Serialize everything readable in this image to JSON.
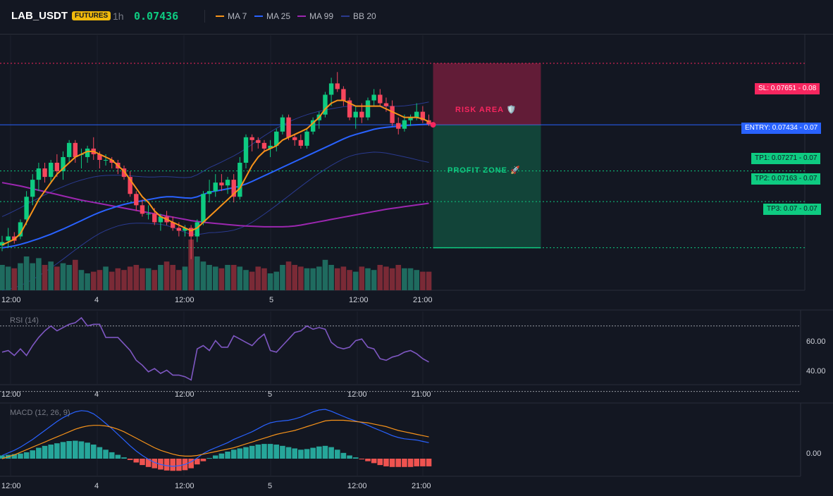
{
  "header": {
    "symbol": "LAB_USDT",
    "badge": "FUTURES",
    "timeframe": "1h",
    "last_price": "0.07436",
    "legend": [
      {
        "label": "MA 7",
        "color": "#f7931a"
      },
      {
        "label": "MA 25",
        "color": "#2962ff"
      },
      {
        "label": "MA 99",
        "color": "#9c27b0"
      },
      {
        "label": "BB 20",
        "color": "#2a3a8f"
      }
    ]
  },
  "levels": {
    "sl": {
      "label": "SL: 0.07651",
      "tag": "0.08",
      "price": 0.07651
    },
    "entry": {
      "label": "ENTRY: 0.07434",
      "tag": "0.07",
      "price": 0.07434
    },
    "tp1": {
      "label": "TP1: 0.07271",
      "tag": "0.07",
      "price": 0.07271
    },
    "tp2": {
      "label": "TP2: 0.07163",
      "tag": "0.07",
      "price": 0.07163
    },
    "tp3": {
      "label": "TP3: 0.07",
      "tag": "0.07",
      "price": 0.07
    }
  },
  "zones": {
    "risk": "RISK AREA 🛡️",
    "profit": "PROFIT ZONE 🚀"
  },
  "time_axis": [
    "12:00",
    "4",
    "12:00",
    "5",
    "12:00",
    "21:00"
  ],
  "rsi": {
    "title": "RSI (14)",
    "ticks": [
      "60.00",
      "40.00"
    ]
  },
  "macd": {
    "title": "MACD (12, 26, 9)",
    "ticks": [
      "0.00"
    ]
  },
  "colors": {
    "up": "#0ecb81",
    "down": "#f6465d",
    "ma7": "#f7931a",
    "ma25": "#2962ff",
    "ma99": "#9c27b0",
    "bb": "#2a3a8f",
    "rsi": "#7e57c2",
    "macd": "#2962ff",
    "signal": "#f7931a"
  },
  "chart_data": [
    {
      "type": "candlestick",
      "title": "LAB_USDT 1h",
      "ylim": [
        0.0685,
        0.0775
      ],
      "candles": [
        [
          0.07008,
          0.07042,
          0.06988,
          0.0702
        ],
        [
          0.07025,
          0.0707,
          0.07,
          0.0704
        ],
        [
          0.0704,
          0.07055,
          0.07015,
          0.07025
        ],
        [
          0.0704,
          0.071,
          0.0703,
          0.0709
        ],
        [
          0.071,
          0.072,
          0.0708,
          0.0718
        ],
        [
          0.0718,
          0.0726,
          0.0715,
          0.0724
        ],
        [
          0.0724,
          0.073,
          0.072,
          0.0728
        ],
        [
          0.0728,
          0.073,
          0.0723,
          0.0725
        ],
        [
          0.0725,
          0.0731,
          0.0723,
          0.073
        ],
        [
          0.073,
          0.0733,
          0.0725,
          0.0727
        ],
        [
          0.0727,
          0.0734,
          0.0724,
          0.0732
        ],
        [
          0.0732,
          0.0738,
          0.073,
          0.0737
        ],
        [
          0.0737,
          0.0738,
          0.073,
          0.0732
        ],
        [
          0.0733,
          0.0735,
          0.0728,
          0.0733
        ],
        [
          0.0732,
          0.0736,
          0.073,
          0.0735
        ],
        [
          0.0735,
          0.0739,
          0.0731,
          0.0733
        ],
        [
          0.0733,
          0.0734,
          0.0728,
          0.0731
        ],
        [
          0.0731,
          0.0733,
          0.0729,
          0.0731
        ],
        [
          0.0731,
          0.0732,
          0.0728,
          0.073
        ],
        [
          0.073,
          0.0731,
          0.0726,
          0.0728
        ],
        [
          0.0728,
          0.0729,
          0.0724,
          0.0725
        ],
        [
          0.0725,
          0.0727,
          0.0718,
          0.0719
        ],
        [
          0.0719,
          0.072,
          0.0713,
          0.0715
        ],
        [
          0.0715,
          0.0717,
          0.0711,
          0.0712
        ],
        [
          0.0712,
          0.0715,
          0.071,
          0.0712
        ],
        [
          0.0712,
          0.0714,
          0.0708,
          0.0709
        ],
        [
          0.0709,
          0.0712,
          0.0706,
          0.0711
        ],
        [
          0.0711,
          0.0713,
          0.0708,
          0.0709
        ],
        [
          0.0709,
          0.0711,
          0.0706,
          0.0707
        ],
        [
          0.0707,
          0.0709,
          0.0704,
          0.0706
        ],
        [
          0.0706,
          0.0708,
          0.0704,
          0.0707
        ],
        [
          0.0707,
          0.0708,
          0.0696,
          0.0704
        ],
        [
          0.0704,
          0.071,
          0.0702,
          0.0709
        ],
        [
          0.0709,
          0.072,
          0.0708,
          0.0719
        ],
        [
          0.0719,
          0.0724,
          0.0716,
          0.072
        ],
        [
          0.072,
          0.0726,
          0.0718,
          0.0723
        ],
        [
          0.0723,
          0.0726,
          0.072,
          0.0722
        ],
        [
          0.0722,
          0.0725,
          0.0719,
          0.0724
        ],
        [
          0.0724,
          0.0726,
          0.0716,
          0.0718
        ],
        [
          0.0718,
          0.0732,
          0.0717,
          0.073
        ],
        [
          0.073,
          0.074,
          0.0728,
          0.0739
        ],
        [
          0.0739,
          0.074,
          0.0734,
          0.0738
        ],
        [
          0.0738,
          0.0739,
          0.0735,
          0.0737
        ],
        [
          0.0737,
          0.0738,
          0.0734,
          0.0735
        ],
        [
          0.0735,
          0.0738,
          0.0732,
          0.0736
        ],
        [
          0.0736,
          0.0742,
          0.0734,
          0.0741
        ],
        [
          0.0741,
          0.0747,
          0.074,
          0.0746
        ],
        [
          0.0746,
          0.0747,
          0.0738,
          0.0739
        ],
        [
          0.0739,
          0.074,
          0.0736,
          0.0738
        ],
        [
          0.0738,
          0.074,
          0.0735,
          0.0736
        ],
        [
          0.0736,
          0.0742,
          0.0735,
          0.0741
        ],
        [
          0.0741,
          0.0746,
          0.074,
          0.0745
        ],
        [
          0.0745,
          0.0748,
          0.0742,
          0.0747
        ],
        [
          0.0747,
          0.0755,
          0.0746,
          0.0754
        ],
        [
          0.0754,
          0.076,
          0.075,
          0.0758
        ],
        [
          0.0758,
          0.0762,
          0.0755,
          0.0756
        ],
        [
          0.0756,
          0.0757,
          0.075,
          0.0752
        ],
        [
          0.0752,
          0.0753,
          0.0745,
          0.0746
        ],
        [
          0.0746,
          0.075,
          0.0742,
          0.0748
        ],
        [
          0.0748,
          0.0751,
          0.0744,
          0.0746
        ],
        [
          0.0746,
          0.0753,
          0.0745,
          0.0752
        ],
        [
          0.0752,
          0.0756,
          0.075,
          0.0754
        ],
        [
          0.0754,
          0.0756,
          0.075,
          0.0751
        ],
        [
          0.0751,
          0.0753,
          0.0748,
          0.075
        ],
        [
          0.075,
          0.0752,
          0.0743,
          0.0744
        ],
        [
          0.0744,
          0.0746,
          0.074,
          0.0742
        ],
        [
          0.0742,
          0.0747,
          0.0741,
          0.0745
        ],
        [
          0.0745,
          0.0747,
          0.0743,
          0.0746
        ],
        [
          0.0746,
          0.0751,
          0.0745,
          0.0748
        ],
        [
          0.0748,
          0.075,
          0.0744,
          0.0745
        ],
        [
          0.0745,
          0.0747,
          0.0743,
          0.07436
        ]
      ],
      "volume": [
        30,
        28,
        26,
        32,
        40,
        32,
        38,
        30,
        34,
        28,
        32,
        30,
        36,
        24,
        20,
        22,
        24,
        28,
        22,
        26,
        24,
        28,
        30,
        26,
        26,
        24,
        30,
        34,
        30,
        24,
        28,
        60,
        40,
        34,
        30,
        28,
        26,
        30,
        30,
        28,
        24,
        22,
        28,
        26,
        20,
        22,
        30,
        34,
        30,
        28,
        26,
        26,
        28,
        36,
        30,
        26,
        28,
        24,
        22,
        28,
        26,
        24,
        30,
        28,
        26,
        30,
        26,
        26,
        24,
        22,
        22
      ],
      "ma7": [
        0.0701,
        0.0702,
        0.0703,
        0.0705,
        0.0709,
        0.0713,
        0.0717,
        0.072,
        0.0723,
        0.0726,
        0.0728,
        0.073,
        0.0732,
        0.0733,
        0.0734,
        0.0734,
        0.0733,
        0.0732,
        0.0731,
        0.0729,
        0.0727,
        0.0724,
        0.0721,
        0.0718,
        0.0716,
        0.0713,
        0.0711,
        0.071,
        0.0709,
        0.0708,
        0.0707,
        0.0706,
        0.0707,
        0.0709,
        0.0711,
        0.0713,
        0.0715,
        0.0717,
        0.0719,
        0.0721,
        0.0725,
        0.0729,
        0.0732,
        0.0734,
        0.0735,
        0.0736,
        0.0738,
        0.0739,
        0.074,
        0.0741,
        0.0742,
        0.0744,
        0.0746,
        0.0749,
        0.0751,
        0.0752,
        0.0752,
        0.0751,
        0.075,
        0.075,
        0.075,
        0.075,
        0.075,
        0.0749,
        0.0748,
        0.0747,
        0.0746,
        0.0746,
        0.0746,
        0.07455,
        0.07445
      ],
      "ma25": [
        0.07,
        0.07003,
        0.07007,
        0.07012,
        0.07018,
        0.07025,
        0.07032,
        0.0704,
        0.07048,
        0.07057,
        0.07066,
        0.07076,
        0.07086,
        0.07096,
        0.07106,
        0.07116,
        0.07125,
        0.07133,
        0.0714,
        0.07147,
        0.07153,
        0.07158,
        0.07162,
        0.07166,
        0.0717,
        0.07174,
        0.07178,
        0.0718,
        0.0718,
        0.07178,
        0.07176,
        0.07175,
        0.0718,
        0.07188,
        0.07196,
        0.072,
        0.07204,
        0.07208,
        0.07212,
        0.07218,
        0.07225,
        0.07234,
        0.07244,
        0.07254,
        0.07264,
        0.07274,
        0.07284,
        0.07294,
        0.07304,
        0.07314,
        0.07324,
        0.07334,
        0.07344,
        0.07354,
        0.07364,
        0.07374,
        0.07384,
        0.07393,
        0.074,
        0.07406,
        0.07412,
        0.07418,
        0.07422,
        0.07425,
        0.07427,
        0.07429,
        0.07431,
        0.07433,
        0.07434,
        0.07435,
        0.07436
      ],
      "ma99": [
        0.0723,
        0.07226,
        0.07222,
        0.07218,
        0.07213,
        0.07208,
        0.07203,
        0.07198,
        0.07193,
        0.07188,
        0.07183,
        0.07178,
        0.07173,
        0.07168,
        0.07164,
        0.0716,
        0.07156,
        0.07152,
        0.07148,
        0.07144,
        0.0714,
        0.07136,
        0.07132,
        0.07128,
        0.07124,
        0.0712,
        0.07116,
        0.07112,
        0.07108,
        0.07104,
        0.071,
        0.07096,
        0.07093,
        0.0709,
        0.07088,
        0.07086,
        0.07084,
        0.07082,
        0.0708,
        0.07078,
        0.07077,
        0.07076,
        0.07075,
        0.07074,
        0.07074,
        0.07074,
        0.07074,
        0.07075,
        0.07077,
        0.0708,
        0.07084,
        0.07088,
        0.07092,
        0.07096,
        0.071,
        0.07104,
        0.07108,
        0.07112,
        0.07116,
        0.0712,
        0.07124,
        0.07128,
        0.07132,
        0.07136,
        0.07139,
        0.07142,
        0.07145,
        0.07148,
        0.07151,
        0.07154,
        0.07157
      ]
    },
    {
      "type": "line",
      "title": "RSI (14)",
      "ylim": [
        35,
        78
      ],
      "values": [
        54,
        55,
        52,
        56,
        52,
        58,
        63,
        67,
        70,
        67,
        69,
        71,
        72,
        75,
        70,
        71,
        71,
        63,
        63,
        63,
        59,
        55,
        49,
        46,
        42,
        44,
        41,
        43,
        40,
        40,
        39,
        37,
        56,
        58,
        55,
        61,
        57,
        57,
        64,
        62,
        60,
        58,
        62,
        65,
        55,
        54,
        58,
        62,
        66,
        67,
        70,
        68,
        69,
        68,
        60,
        57,
        56,
        57,
        61,
        62,
        57,
        56,
        50,
        49,
        51,
        52,
        54,
        55,
        53,
        50,
        48
      ]
    },
    {
      "type": "bar",
      "title": "MACD (12, 26, 9)",
      "ylim": [
        -0.00055,
        0.00165
      ],
      "hist": [
        0.0001,
        0.00012,
        0.00014,
        0.00016,
        0.0002,
        0.00026,
        0.00034,
        0.0004,
        0.00044,
        0.00048,
        0.00052,
        0.00055,
        0.00056,
        0.00054,
        0.0005,
        0.00044,
        0.00036,
        0.00028,
        0.0002,
        0.00012,
        4e-05,
        -4e-05,
        -0.00012,
        -0.0002,
        -0.00026,
        -0.0003,
        -0.00034,
        -0.00037,
        -0.00038,
        -0.00038,
        -0.00036,
        -0.0003,
        -0.00018,
        -8e-05,
        2e-05,
        0.0001,
        0.00016,
        0.00022,
        0.00028,
        0.00032,
        0.00036,
        0.0004,
        0.00044,
        0.00046,
        0.00046,
        0.00044,
        0.0004,
        0.00036,
        0.00032,
        0.00028,
        0.0003,
        0.00034,
        0.00038,
        0.0004,
        0.00036,
        0.00028,
        0.00018,
        0.0001,
        4e-05,
        -2e-05,
        -8e-05,
        -0.00014,
        -0.0002,
        -0.00024,
        -0.00026,
        -0.00026,
        -0.00026,
        -0.00026,
        -0.00024,
        -0.00024,
        -0.00024
      ],
      "macd": [
        0.0001,
        0.00018,
        0.00026,
        0.00036,
        0.00048,
        0.0006,
        0.00074,
        0.00088,
        0.00102,
        0.00116,
        0.00128,
        0.00138,
        0.00146,
        0.0015,
        0.00148,
        0.0014,
        0.00126,
        0.0011,
        0.00094,
        0.00076,
        0.00058,
        0.0004,
        0.00024,
        0.0001,
        -2e-05,
        -0.00012,
        -0.00018,
        -0.00022,
        -0.00024,
        -0.00022,
        -0.00018,
        -0.0001,
        2e-05,
        0.00016,
        0.00026,
        0.00034,
        0.00042,
        0.0005,
        0.0006,
        0.00068,
        0.00076,
        0.00084,
        0.00094,
        0.00104,
        0.00112,
        0.00116,
        0.00118,
        0.0012,
        0.00124,
        0.0013,
        0.00138,
        0.00146,
        0.00152,
        0.00154,
        0.00148,
        0.0014,
        0.00132,
        0.00124,
        0.00118,
        0.00112,
        0.00104,
        0.00096,
        0.00088,
        0.0008,
        0.00072,
        0.00066,
        0.00062,
        0.0006,
        0.00058,
        0.00054,
        0.0005
      ],
      "signal": [
        0.0,
        6e-05,
        0.00012,
        0.0002,
        0.00028,
        0.00036,
        0.00044,
        0.00052,
        0.0006,
        0.00068,
        0.00076,
        0.00084,
        0.00092,
        0.00098,
        0.00102,
        0.00104,
        0.00104,
        0.00102,
        0.00098,
        0.00092,
        0.00084,
        0.00074,
        0.00064,
        0.00054,
        0.00044,
        0.00034,
        0.00026,
        0.0002,
        0.00014,
        0.0001,
        8e-05,
        8e-05,
        0.0001,
        0.00014,
        0.00018,
        0.00022,
        0.00026,
        0.0003,
        0.00034,
        0.0004,
        0.00046,
        0.00052,
        0.00058,
        0.00064,
        0.0007,
        0.00076,
        0.0008,
        0.00084,
        0.00088,
        0.00094,
        0.001,
        0.00106,
        0.00112,
        0.00118,
        0.0012,
        0.0012,
        0.0012,
        0.00118,
        0.00116,
        0.00114,
        0.00112,
        0.00108,
        0.00104,
        0.001,
        0.00094,
        0.00088,
        0.00084,
        0.0008,
        0.00076,
        0.00072,
        0.00068
      ]
    }
  ]
}
